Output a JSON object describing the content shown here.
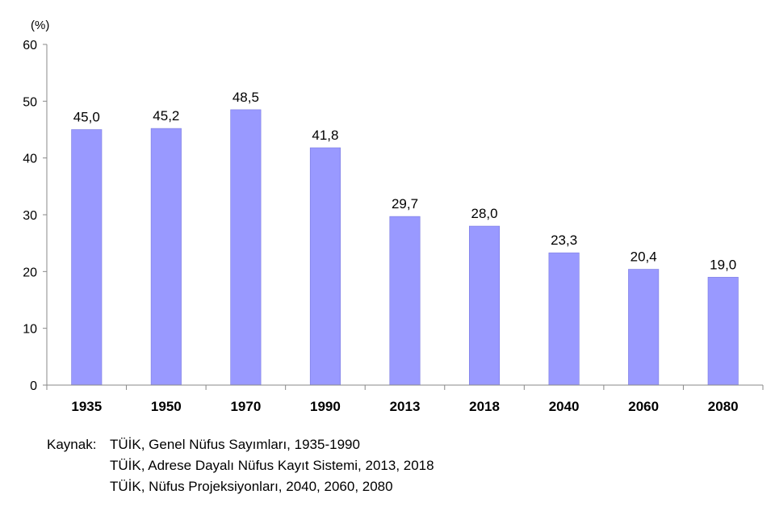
{
  "chart_data": {
    "type": "bar",
    "categories": [
      "1935",
      "1950",
      "1970",
      "1990",
      "2013",
      "2018",
      "2040",
      "2060",
      "2080"
    ],
    "values": [
      45.0,
      45.2,
      48.5,
      41.8,
      29.7,
      28.0,
      23.3,
      20.4,
      19.0
    ],
    "data_labels": [
      "45,0",
      "45,2",
      "48,5",
      "41,8",
      "29,7",
      "28,0",
      "23,3",
      "20,4",
      "19,0"
    ],
    "ylabel": "(%)",
    "ylim": [
      0,
      60
    ],
    "yticks": [
      0,
      10,
      20,
      30,
      40,
      50,
      60
    ],
    "grid": false,
    "bar_color": "#9999ff",
    "bar_edge_color": "#7a7ae0"
  },
  "source": {
    "prefix": "Kaynak:",
    "lines": [
      "TÜİK, Genel Nüfus Sayımları, 1935-1990",
      "TÜİK, Adrese Dayalı Nüfus Kayıt Sistemi, 2013, 2018",
      "TÜİK, Nüfus Projeksiyonları, 2040, 2060, 2080"
    ]
  }
}
